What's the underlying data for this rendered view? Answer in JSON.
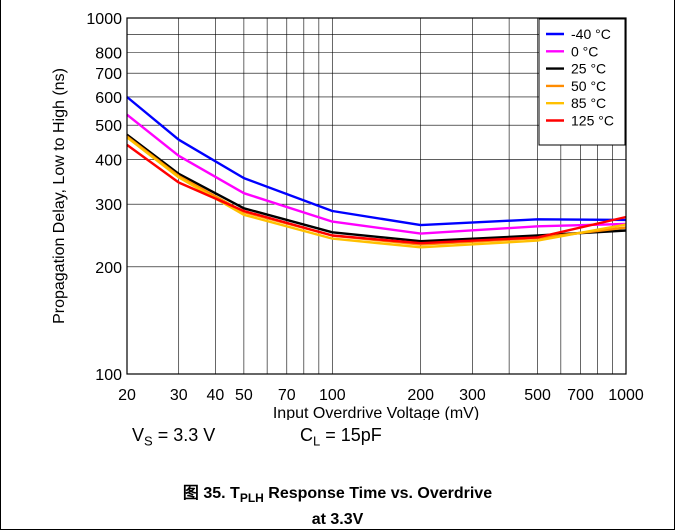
{
  "chart_data": {
    "type": "line",
    "xlabel": "Input Overdrive Voltage (mV)",
    "ylabel": "Propagation Delay, Low to High (ns)",
    "xscale": "log",
    "yscale": "log",
    "xlim": [
      20,
      1000
    ],
    "ylim": [
      100,
      1000
    ],
    "grid": true,
    "legend_position": "top-right",
    "x_ticks": [
      "20",
      "30",
      "40",
      "50",
      "70",
      "100",
      "200",
      "300",
      "500",
      "700",
      "1000"
    ],
    "y_ticks": [
      "100",
      "200",
      "300",
      "400",
      "500",
      "600",
      "700",
      "800",
      "1000"
    ],
    "x": [
      20,
      30,
      50,
      100,
      200,
      500,
      1000
    ],
    "series": [
      {
        "name": "-40 °C",
        "color": "#0000ff",
        "values": [
          600,
          455,
          355,
          287,
          262,
          272,
          271
        ]
      },
      {
        "name": "0 °C",
        "color": "#ff00ff",
        "values": [
          535,
          410,
          322,
          268,
          248,
          260,
          264
        ]
      },
      {
        "name": "25 °C",
        "color": "#000000",
        "values": [
          470,
          365,
          292,
          250,
          236,
          245,
          253
        ]
      },
      {
        "name": "50 °C",
        "color": "#ff8c00",
        "values": [
          465,
          360,
          285,
          245,
          231,
          241,
          258
        ]
      },
      {
        "name": "85 °C",
        "color": "#ffc000",
        "values": [
          462,
          357,
          280,
          240,
          227,
          237,
          263
        ]
      },
      {
        "name": "125 °C",
        "color": "#ff0000",
        "values": [
          440,
          345,
          287,
          245,
          233,
          242,
          276
        ]
      }
    ]
  },
  "conditions": {
    "vs_main": "V",
    "vs_sub": "S",
    "vs_value": " = 3.3 V",
    "cl_main": "C",
    "cl_sub": "L",
    "cl_value": " = 15pF"
  },
  "caption": {
    "prefix": "图 35. T",
    "sub": "PLH",
    "line1_rest": " Response Time vs. Overdrive",
    "line2": "at 3.3V"
  }
}
